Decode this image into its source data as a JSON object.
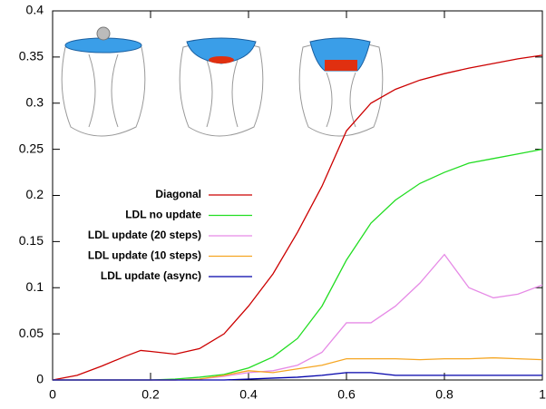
{
  "chart_data": {
    "type": "line",
    "x": [
      0,
      0.05,
      0.1,
      0.15,
      0.18,
      0.2,
      0.25,
      0.3,
      0.35,
      0.4,
      0.45,
      0.5,
      0.55,
      0.6,
      0.65,
      0.7,
      0.75,
      0.8,
      0.85,
      0.9,
      0.95,
      1
    ],
    "series": [
      {
        "name": "Diagonal",
        "color": "#cc0000",
        "values": [
          0,
          0.005,
          0.015,
          0.026,
          0.032,
          0.031,
          0.028,
          0.034,
          0.05,
          0.08,
          0.115,
          0.16,
          0.21,
          0.27,
          0.3,
          0.315,
          0.325,
          0.332,
          0.338,
          0.343,
          0.348,
          0.352
        ]
      },
      {
        "name": "LDL no update",
        "color": "#22dd22",
        "values": [
          0,
          0,
          0,
          0,
          0,
          0,
          0.001,
          0.003,
          0.006,
          0.013,
          0.025,
          0.045,
          0.08,
          0.13,
          0.17,
          0.195,
          0.213,
          0.225,
          0.235,
          0.24,
          0.245,
          0.25
        ]
      },
      {
        "name": "LDL update (20 steps)",
        "color": "#e68ae6",
        "values": [
          0,
          0,
          0,
          0,
          0,
          0,
          0,
          0.001,
          0.004,
          0.008,
          0.01,
          0.016,
          0.03,
          0.062,
          0.062,
          0.08,
          0.105,
          0.136,
          0.1,
          0.089,
          0.093,
          0.103
        ]
      },
      {
        "name": "LDL update (10 steps)",
        "color": "#f5a623",
        "values": [
          0,
          0,
          0,
          0,
          0,
          0,
          0,
          0.001,
          0.005,
          0.01,
          0.008,
          0.012,
          0.016,
          0.023,
          0.023,
          0.023,
          0.022,
          0.023,
          0.023,
          0.024,
          0.023,
          0.022
        ]
      },
      {
        "name": "LDL update (async)",
        "color": "#0000aa",
        "values": [
          0,
          0,
          0,
          0,
          0,
          0,
          0,
          0,
          0,
          0.001,
          0.002,
          0.003,
          0.005,
          0.008,
          0.008,
          0.005,
          0.005,
          0.005,
          0.005,
          0.005,
          0.005,
          0.005
        ]
      }
    ],
    "xlim": [
      0,
      1
    ],
    "xticks": [
      0,
      0.2,
      0.4,
      0.6,
      0.8,
      1
    ],
    "ylim": [
      0,
      0.4
    ],
    "yticks": [
      0,
      0.05,
      0.1,
      0.15,
      0.2,
      0.25,
      0.3,
      0.35,
      0.4
    ],
    "legend": "left"
  }
}
